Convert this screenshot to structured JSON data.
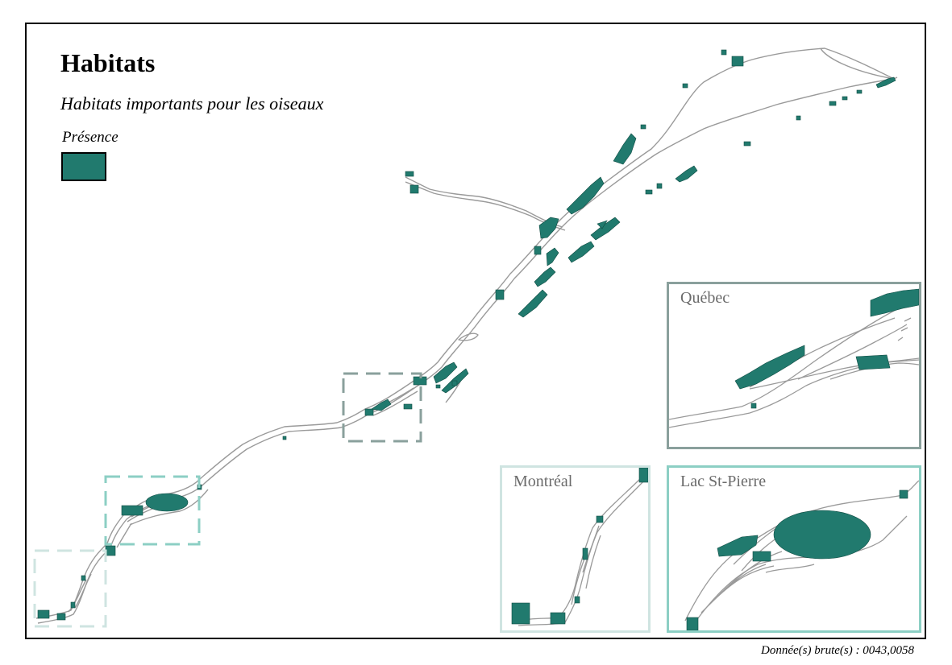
{
  "map": {
    "title": "Habitats",
    "subtitle": "Habitats importants pour les oiseaux",
    "legend": {
      "title": "Présence",
      "color": "#217a6e",
      "border_color": "#000000"
    },
    "colors": {
      "river": "#9a9a9a",
      "habitat": "#217a6e",
      "habitat_stroke": "#0f4c43"
    },
    "insets": [
      {
        "id": "quebec",
        "label": "Québec",
        "border_color": "#8aa09c"
      },
      {
        "id": "montreal",
        "label": "Montréal",
        "border_color": "#cfe4e1"
      },
      {
        "id": "lac-st-pierre",
        "label": "Lac St-Pierre",
        "border_color": "#8ccfc4"
      }
    ]
  },
  "source_note": "Donnée(s) brute(s) : 0043,0058"
}
